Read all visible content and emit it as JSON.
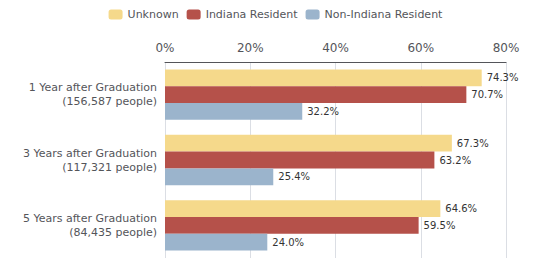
{
  "chart_data": {
    "type": "bar",
    "orientation": "horizontal",
    "categories": [
      "1 Year after Graduation\n(156,587 people)",
      "3 Years after Graduation\n(117,321 people)",
      "5 Years after Graduation\n(84,435 people)"
    ],
    "series": [
      {
        "name": "Unknown",
        "color": "#F5D98B",
        "values": [
          74.3,
          67.3,
          64.6
        ],
        "value_labels": [
          "74.3%",
          "67.3%",
          "64.6%"
        ]
      },
      {
        "name": "Indiana Resident",
        "color": "#B5514A",
        "values": [
          70.7,
          63.2,
          59.5
        ],
        "value_labels": [
          "70.7%",
          "63.2%",
          "59.5%"
        ]
      },
      {
        "name": "Non-Indiana Resident",
        "color": "#9BB4CC",
        "values": [
          32.2,
          25.4,
          24.0
        ],
        "value_labels": [
          "32.2%",
          "25.4%",
          "24.0%"
        ]
      }
    ],
    "xlim": [
      0,
      80
    ],
    "xticks": [
      {
        "value": 0,
        "label": "0%"
      },
      {
        "value": 20,
        "label": "20%"
      },
      {
        "value": 40,
        "label": "40%"
      },
      {
        "value": 60,
        "label": "60%"
      },
      {
        "value": 80,
        "label": "80%"
      }
    ],
    "grid": true,
    "legend": "top",
    "data_labels": true
  }
}
